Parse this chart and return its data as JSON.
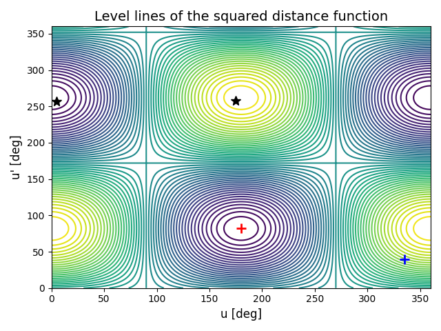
{
  "title": "Level lines of the squared distance function",
  "xlabel": "u [deg]",
  "ylabel": "u' [deg]",
  "xlim": [
    0,
    360
  ],
  "ylim": [
    0,
    360
  ],
  "xticks": [
    0,
    50,
    100,
    150,
    200,
    250,
    300,
    350
  ],
  "yticks": [
    0,
    50,
    100,
    150,
    200,
    250,
    300,
    350
  ],
  "red_marker": [
    180,
    82
  ],
  "blue_marker": [
    335,
    40
  ],
  "star_marker_1": [
    5,
    257
  ],
  "star_marker_2": [
    175,
    258
  ],
  "n_contours": 50,
  "colormap": "viridis",
  "figsize": [
    6.4,
    4.8
  ],
  "dpi": 100,
  "title_fontsize": 14,
  "obs_u": 335,
  "obs_up": 40,
  "ref_u": 180,
  "ref_up": 82
}
